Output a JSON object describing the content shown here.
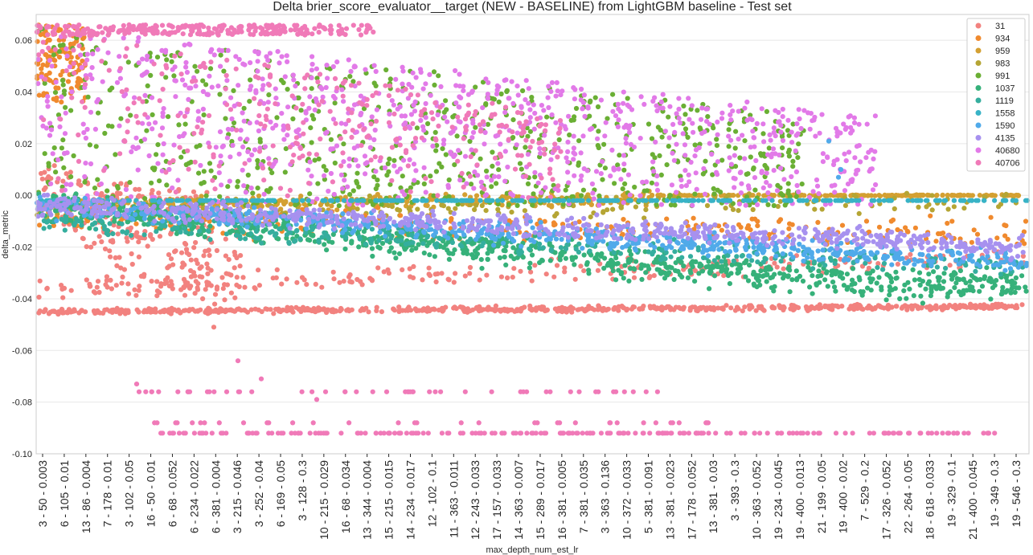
{
  "chart_data": {
    "type": "scatter",
    "title": "Delta brier_score_evaluator__target (NEW - BASELINE) from LightGBM baseline - Test set",
    "xlabel": "max_depth_num_est_lr",
    "ylabel": "delta_metric",
    "ylim": [
      -0.1,
      0.07
    ],
    "yticks": [
      -0.1,
      -0.08,
      -0.06,
      -0.04,
      -0.02,
      0.0,
      0.02,
      0.04,
      0.06
    ],
    "ytick_labels": [
      "-0.10",
      "-0.08",
      "-0.06",
      "-0.04",
      "-0.02",
      "0.00",
      "0.02",
      "0.04",
      "0.06"
    ],
    "grid": true,
    "legend_position": "top-right",
    "x_tick_labels": [
      "3 - 50 - 0.003",
      "6 - 105 - 0.01",
      "13 - 86 - 0.004",
      "7 - 178 - 0.01",
      "3 - 102 - 0.05",
      "16 - 50 - 0.01",
      "6 - 68 - 0.052",
      "6 - 234 - 0.022",
      "6 - 381 - 0.004",
      "3 - 215 - 0.046",
      "3 - 252 - 0.04",
      "6 - 169 - 0.05",
      "3 - 128 - 0.3",
      "10 - 215 - 0.029",
      "16 - 68 - 0.034",
      "13 - 344 - 0.004",
      "15 - 215 - 0.015",
      "14 - 234 - 0.017",
      "12 - 102 - 0.1",
      "11 - 363 - 0.011",
      "12 - 243 - 0.033",
      "17 - 157 - 0.033",
      "14 - 363 - 0.007",
      "15 - 289 - 0.017",
      "16 - 381 - 0.005",
      "7 - 381 - 0.035",
      "3 - 363 - 0.136",
      "10 - 372 - 0.033",
      "5 - 381 - 0.091",
      "13 - 381 - 0.023",
      "17 - 178 - 0.052",
      "13 - 381 - 0.03",
      "3 - 393 - 0.3",
      "10 - 363 - 0.052",
      "19 - 234 - 0.045",
      "19 - 400 - 0.013",
      "21 - 199 - 0.05",
      "19 - 400 - 0.02",
      "7 - 529 - 0.2",
      "17 - 326 - 0.052",
      "22 - 264 - 0.05",
      "18 - 618 - 0.033",
      "19 - 329 - 0.1",
      "21 - 400 - 0.045",
      "19 - 349 - 0.3",
      "19 - 546 - 0.3"
    ],
    "series": [
      {
        "name": "31",
        "color": "#f2827f"
      },
      {
        "name": "934",
        "color": "#f08a2e"
      },
      {
        "name": "959",
        "color": "#d4a032"
      },
      {
        "name": "983",
        "color": "#b5a534"
      },
      {
        "name": "991",
        "color": "#6aaf34"
      },
      {
        "name": "1037",
        "color": "#36b17a"
      },
      {
        "name": "1119",
        "color": "#35ae9e"
      },
      {
        "name": "1558",
        "color": "#38b3c6"
      },
      {
        "name": "1590",
        "color": "#50aaea"
      },
      {
        "name": "4135",
        "color": "#a791ef"
      },
      {
        "name": "40680",
        "color": "#e27ae8"
      },
      {
        "name": "40706",
        "color": "#f07ab8"
      }
    ]
  }
}
